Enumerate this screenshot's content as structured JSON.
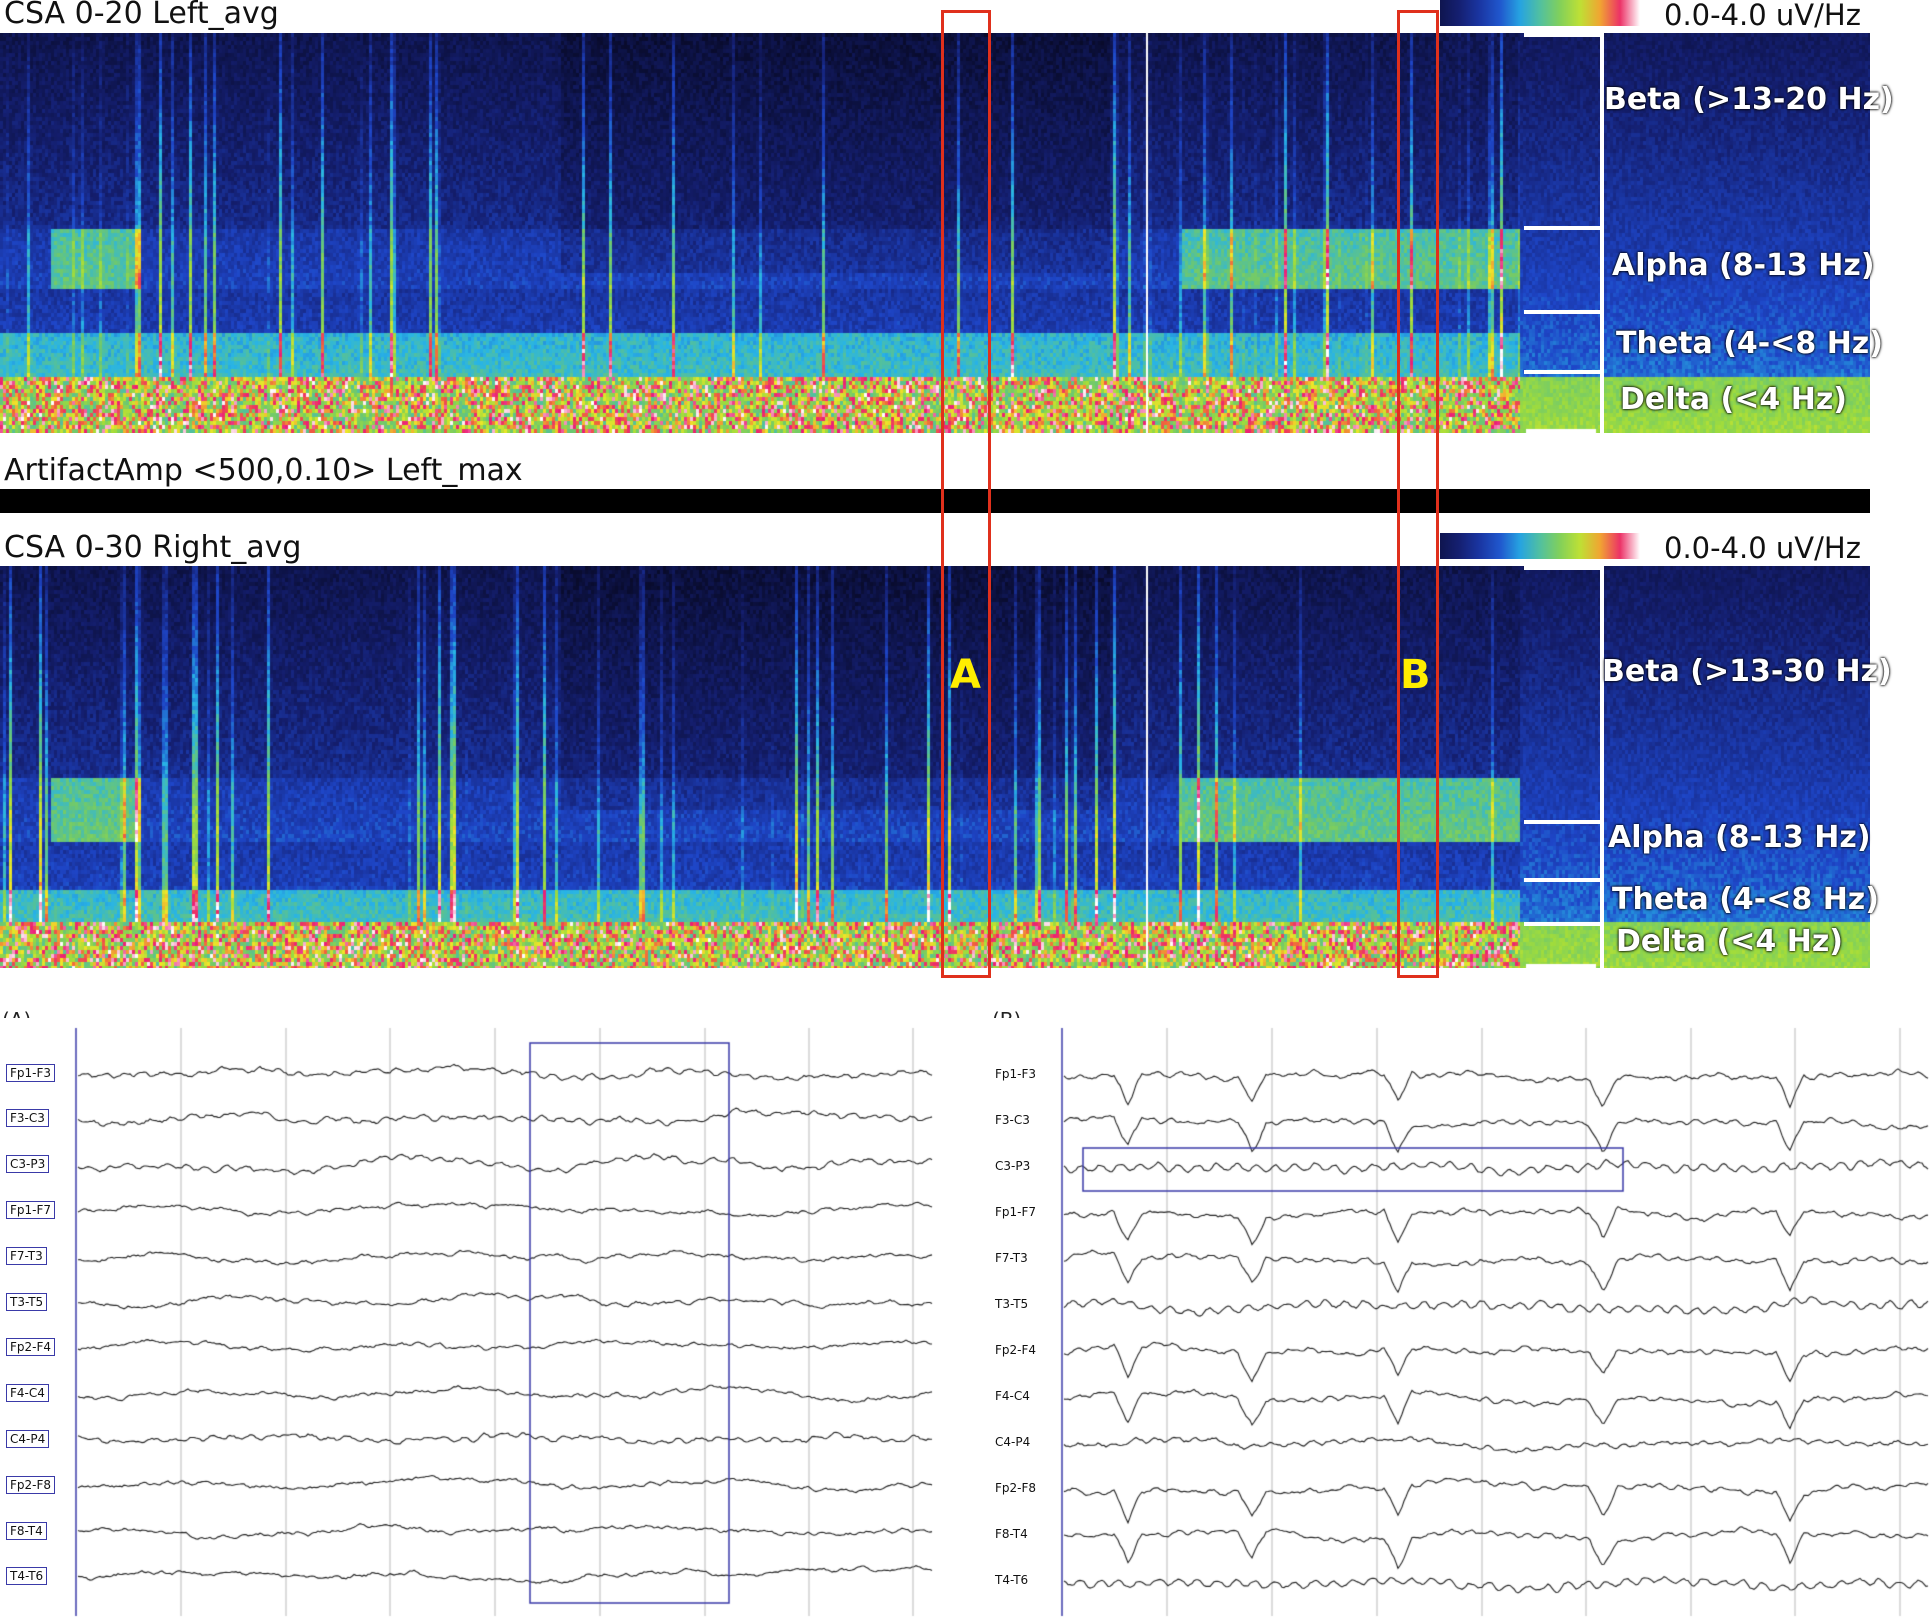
{
  "csa_top": {
    "title": "CSA 0-20 Left_avg",
    "scale": "0.0-4.0 uV/Hz",
    "bands": {
      "beta": "Beta (>13-20 Hz)",
      "alpha": "Alpha (8-13 Hz)",
      "theta": "Theta (4-<8 Hz)",
      "delta": "Delta (<4 Hz)"
    }
  },
  "artifact": {
    "title": "ArtifactAmp <500,0.10> Left_max"
  },
  "csa_bottom": {
    "title": "CSA 0-30 Right_avg",
    "scale": "0.0-4.0 uV/Hz",
    "bands": {
      "beta": "Beta (>13-30 Hz)",
      "alpha": "Alpha (8-13 Hz)",
      "theta": "Theta (4-<8 Hz)",
      "delta": "Delta (<4 Hz)"
    }
  },
  "regions": {
    "a": "A",
    "b": "B"
  },
  "colors": {
    "highlight_box": "#e0301c",
    "region_label": "#ffee00",
    "eeg_trace": "#222222",
    "eeg_selection": "#3a3aa8",
    "background": "#ffffff"
  },
  "eeg_a": {
    "label": "(A)",
    "channels": [
      "Fp1-F3",
      "F3-C3",
      "C3-P3",
      "Fp1-F7",
      "F7-T3",
      "T3-T5",
      "Fp2-F4",
      "F4-C4",
      "C4-P4",
      "Fp2-F8",
      "F8-T4",
      "T4-T6"
    ]
  },
  "eeg_b": {
    "label": "(B)",
    "channels": [
      "Fp1-F3",
      "F3-C3",
      "C3-P3",
      "Fp1-F7",
      "F7-T3",
      "T3-T5",
      "Fp2-F4",
      "F4-C4",
      "C4-P4",
      "Fp2-F8",
      "F8-T4",
      "T4-T6"
    ]
  }
}
